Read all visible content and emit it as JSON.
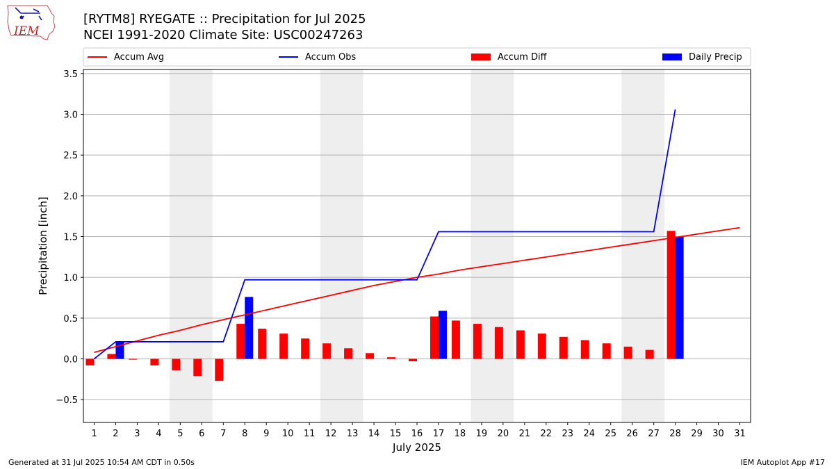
{
  "logo": {
    "text": "IEM"
  },
  "header": {
    "title": "[RYTM8] RYEGATE :: Precipitation for Jul 2025",
    "subtitle": "NCEI 1991-2020 Climate Site: USC00247263"
  },
  "footer": {
    "left": "Generated at 31 Jul 2025 10:54 AM CDT in 0.50s",
    "right": "IEM Autoplot App #17"
  },
  "chart_data": {
    "type": "bar",
    "xlabel": "July 2025",
    "ylabel": "Precipitation [inch]",
    "xlim": [
      0.5,
      31.5
    ],
    "ylim": [
      -0.78,
      3.55
    ],
    "yticks": [
      -0.5,
      0.0,
      0.5,
      1.0,
      1.5,
      2.0,
      2.5,
      3.0,
      3.5
    ],
    "ytick_labels": [
      "−0.5",
      "0.0",
      "0.5",
      "1.0",
      "1.5",
      "2.0",
      "2.5",
      "3.0",
      "3.5"
    ],
    "days": [
      1,
      2,
      3,
      4,
      5,
      6,
      7,
      8,
      9,
      10,
      11,
      12,
      13,
      14,
      15,
      16,
      17,
      18,
      19,
      20,
      21,
      22,
      23,
      24,
      25,
      26,
      27,
      28,
      29,
      30,
      31
    ],
    "weekend_bands": [
      [
        4.5,
        6.5
      ],
      [
        11.5,
        13.5
      ],
      [
        18.5,
        20.5
      ],
      [
        25.5,
        27.5
      ]
    ],
    "grid": true,
    "legend_position": "top",
    "colors": {
      "accum_avg": "#ff0000",
      "accum_obs": "#0000ff",
      "accum_diff": "#ff0000",
      "daily_precip": "#0000ff",
      "weekend": "#eeeeee",
      "grid": "#b0b0b0"
    },
    "series": [
      {
        "name": "Accum Avg",
        "kind": "line",
        "values": [
          0.08,
          0.15,
          0.22,
          0.29,
          0.35,
          0.42,
          0.48,
          0.54,
          0.6,
          0.66,
          0.72,
          0.78,
          0.84,
          0.9,
          0.95,
          1.0,
          1.04,
          1.09,
          1.13,
          1.17,
          1.21,
          1.25,
          1.29,
          1.33,
          1.37,
          1.41,
          1.45,
          1.49,
          1.53,
          1.57,
          1.61
        ]
      },
      {
        "name": "Accum Obs",
        "kind": "line",
        "values": [
          0.0,
          0.21,
          0.21,
          0.21,
          0.21,
          0.21,
          0.21,
          0.97,
          0.97,
          0.97,
          0.97,
          0.97,
          0.97,
          0.97,
          0.97,
          0.97,
          1.56,
          1.56,
          1.56,
          1.56,
          1.56,
          1.56,
          1.56,
          1.56,
          1.56,
          1.56,
          1.56,
          3.06,
          null,
          null,
          null
        ]
      },
      {
        "name": "Accum Diff",
        "kind": "bar",
        "values": [
          -0.08,
          0.06,
          -0.01,
          -0.08,
          -0.14,
          -0.21,
          -0.27,
          0.43,
          0.37,
          0.31,
          0.25,
          0.19,
          0.13,
          0.07,
          0.02,
          -0.03,
          0.52,
          0.47,
          0.43,
          0.39,
          0.35,
          0.31,
          0.27,
          0.23,
          0.19,
          0.15,
          0.11,
          1.57,
          null,
          null,
          null
        ]
      },
      {
        "name": "Daily Precip",
        "kind": "bar",
        "values": [
          0,
          0.21,
          0,
          0,
          0,
          0,
          0,
          0.76,
          0,
          0,
          0,
          0,
          0,
          0,
          0,
          0,
          0.59,
          0,
          0,
          0,
          0,
          0,
          0,
          0,
          0,
          0,
          0,
          1.5,
          null,
          null,
          null
        ]
      }
    ]
  }
}
